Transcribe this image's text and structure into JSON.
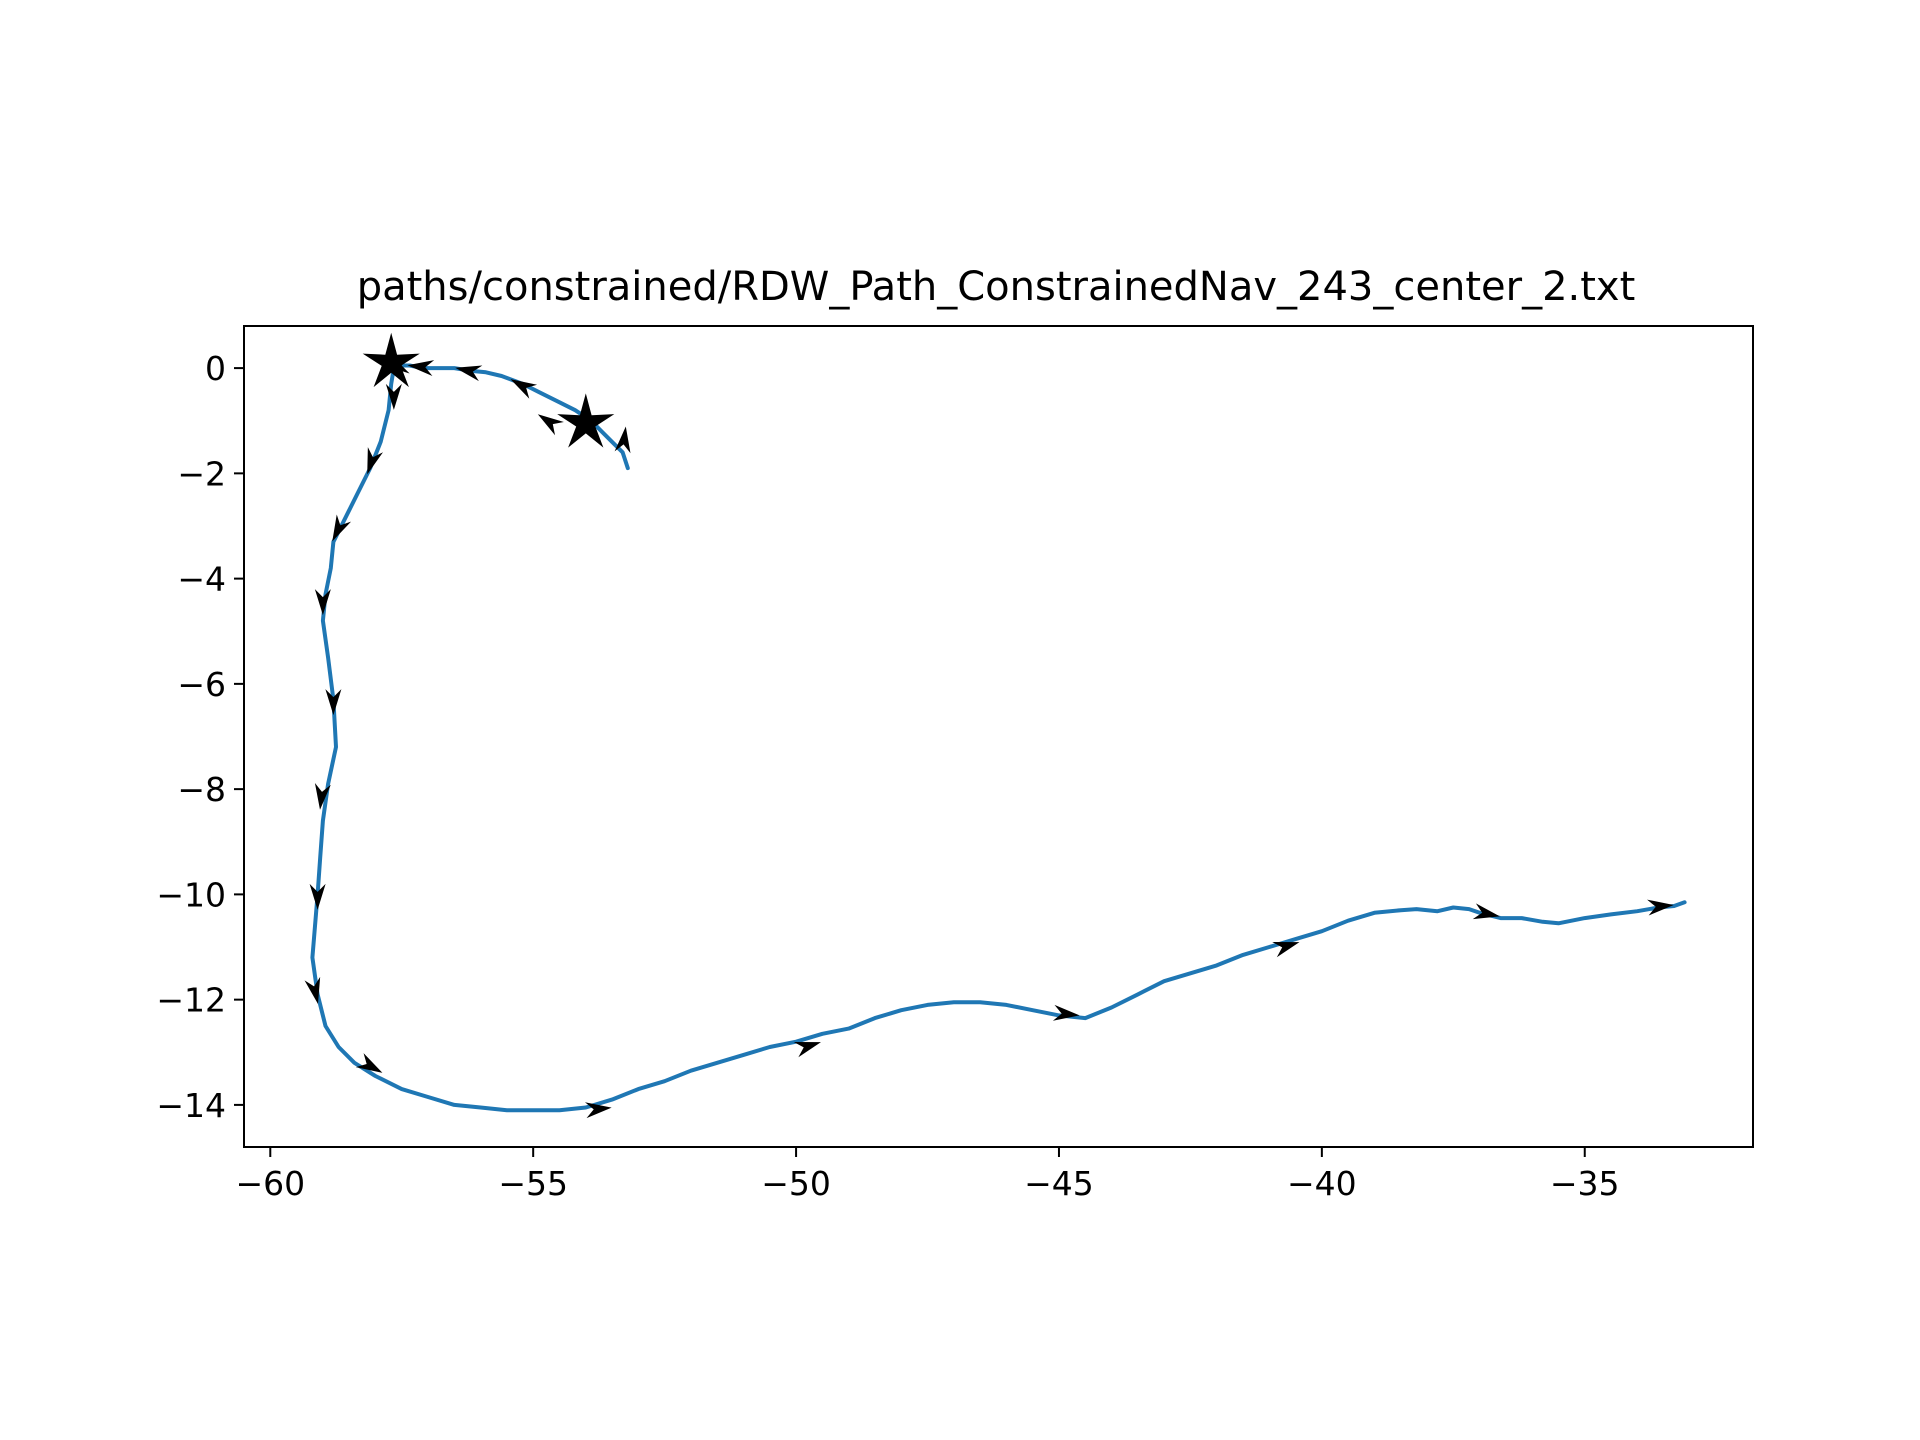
{
  "chart_data": {
    "type": "line",
    "title": "paths/constrained/RDW_Path_ConstrainedNav_243_center_2.txt",
    "xlabel": "",
    "ylabel": "",
    "xlim": [
      -60.5,
      -31.8
    ],
    "ylim": [
      -14.8,
      0.8
    ],
    "grid": false,
    "xticks": [
      -60,
      -55,
      -50,
      -45,
      -40,
      -35
    ],
    "yticks": [
      0,
      -2,
      -4,
      -6,
      -8,
      -10,
      -12,
      -14
    ],
    "xtick_labels": [
      "−60",
      "−55",
      "−50",
      "−45",
      "−40",
      "−35"
    ],
    "ytick_labels": [
      "0",
      "−2",
      "−4",
      "−6",
      "−8",
      "−10",
      "−12",
      "−14"
    ],
    "colors": {
      "path": "#1f77b4",
      "markers": "#000000",
      "axes": "#000000"
    },
    "series": [
      {
        "x": [
          -53.2,
          -53.3,
          -53.5,
          -53.7,
          -53.9,
          -54.2,
          -54.5,
          -54.9,
          -55.2,
          -55.6,
          -55.9,
          -56.2,
          -56.5,
          -56.8,
          -57.1,
          -57.35,
          -57.55,
          -57.65,
          -57.7,
          -57.75,
          -57.9,
          -58.1,
          -58.3,
          -58.5,
          -58.65,
          -58.8,
          -58.85,
          -58.95,
          -59.0,
          -58.9,
          -58.8,
          -58.75,
          -58.9,
          -59.0,
          -59.05,
          -59.1,
          -59.15,
          -59.2,
          -59.1,
          -58.95,
          -58.7,
          -58.4,
          -58.0,
          -57.5,
          -57.0,
          -56.5,
          -56.0,
          -55.5,
          -55.0,
          -54.5,
          -54.0,
          -53.5,
          -53.0,
          -52.5,
          -52.0,
          -51.5,
          -51.0,
          -50.5,
          -50.0,
          -49.5,
          -49.0,
          -48.5,
          -48.0,
          -47.5,
          -47.0,
          -46.5,
          -46.0,
          -45.5,
          -45.0,
          -44.5,
          -44.0,
          -43.5,
          -43.0,
          -42.5,
          -42.0,
          -41.5,
          -41.0,
          -40.5,
          -40.0,
          -39.5,
          -39.0,
          -38.5,
          -38.2,
          -37.8,
          -37.5,
          -37.2,
          -37.0,
          -36.6,
          -36.2,
          -35.8,
          -35.5,
          -35.0,
          -34.5,
          -34.0,
          -33.6,
          -33.3,
          -33.1
        ],
        "y": [
          -1.9,
          -1.6,
          -1.4,
          -1.2,
          -1.0,
          -0.8,
          -0.65,
          -0.45,
          -0.3,
          -0.15,
          -0.08,
          -0.05,
          0.0,
          0.0,
          0.0,
          0.05,
          0.05,
          0.0,
          -0.3,
          -0.8,
          -1.4,
          -1.9,
          -2.3,
          -2.7,
          -3.0,
          -3.3,
          -3.8,
          -4.3,
          -4.8,
          -5.5,
          -6.3,
          -7.2,
          -7.9,
          -8.6,
          -9.3,
          -10.0,
          -10.6,
          -11.2,
          -11.9,
          -12.5,
          -12.9,
          -13.2,
          -13.45,
          -13.7,
          -13.85,
          -14.0,
          -14.05,
          -14.1,
          -14.1,
          -14.1,
          -14.05,
          -13.9,
          -13.7,
          -13.55,
          -13.35,
          -13.2,
          -13.05,
          -12.9,
          -12.8,
          -12.65,
          -12.55,
          -12.35,
          -12.2,
          -12.1,
          -12.05,
          -12.05,
          -12.1,
          -12.2,
          -12.3,
          -12.35,
          -12.15,
          -11.9,
          -11.65,
          -11.5,
          -11.35,
          -11.15,
          -11.0,
          -10.85,
          -10.7,
          -10.5,
          -10.35,
          -10.3,
          -10.28,
          -10.32,
          -10.25,
          -10.28,
          -10.35,
          -10.45,
          -10.45,
          -10.52,
          -10.55,
          -10.45,
          -10.38,
          -10.32,
          -10.25,
          -10.22,
          -10.15
        ]
      }
    ],
    "markers": {
      "stars": [
        {
          "x": -57.7,
          "y": 0.1
        },
        {
          "x": -54.0,
          "y": -1.05
        }
      ],
      "arrows": [
        {
          "x": -53.3,
          "y": -1.6,
          "dx": 0.05,
          "dy": 0.4
        },
        {
          "x": -54.5,
          "y": -1.15,
          "dx": -0.45,
          "dy": 0.3
        },
        {
          "x": -55.0,
          "y": -0.45,
          "dx": -0.45,
          "dy": 0.25
        },
        {
          "x": -56.0,
          "y": -0.1,
          "dx": -0.45,
          "dy": 0.1
        },
        {
          "x": -56.9,
          "y": 0.0,
          "dx": -0.45,
          "dy": 0.05
        },
        {
          "x": -57.35,
          "y": 0.05,
          "dx": -0.45,
          "dy": 0.0
        },
        {
          "x": -57.65,
          "y": -0.3,
          "dx": 0.0,
          "dy": -0.45
        },
        {
          "x": -58.0,
          "y": -1.55,
          "dx": -0.15,
          "dy": -0.45
        },
        {
          "x": -58.6,
          "y": -2.85,
          "dx": -0.2,
          "dy": -0.4
        },
        {
          "x": -59.0,
          "y": -4.2,
          "dx": 0.0,
          "dy": -0.45
        },
        {
          "x": -58.8,
          "y": -6.1,
          "dx": 0.0,
          "dy": -0.45
        },
        {
          "x": -59.0,
          "y": -7.9,
          "dx": -0.05,
          "dy": -0.45
        },
        {
          "x": -59.1,
          "y": -9.8,
          "dx": 0.0,
          "dy": -0.45
        },
        {
          "x": -59.2,
          "y": -11.6,
          "dx": 0.1,
          "dy": -0.45
        },
        {
          "x": -58.3,
          "y": -13.15,
          "dx": 0.45,
          "dy": -0.25
        },
        {
          "x": -54.0,
          "y": -14.1,
          "dx": 0.5,
          "dy": 0.05
        },
        {
          "x": -50.0,
          "y": -12.95,
          "dx": 0.5,
          "dy": 0.15
        },
        {
          "x": -45.1,
          "y": -12.25,
          "dx": 0.5,
          "dy": -0.05
        },
        {
          "x": -40.9,
          "y": -11.05,
          "dx": 0.5,
          "dy": 0.15
        },
        {
          "x": -37.1,
          "y": -10.32,
          "dx": 0.5,
          "dy": -0.1
        },
        {
          "x": -33.8,
          "y": -10.25,
          "dx": 0.5,
          "dy": 0.05
        }
      ]
    }
  }
}
